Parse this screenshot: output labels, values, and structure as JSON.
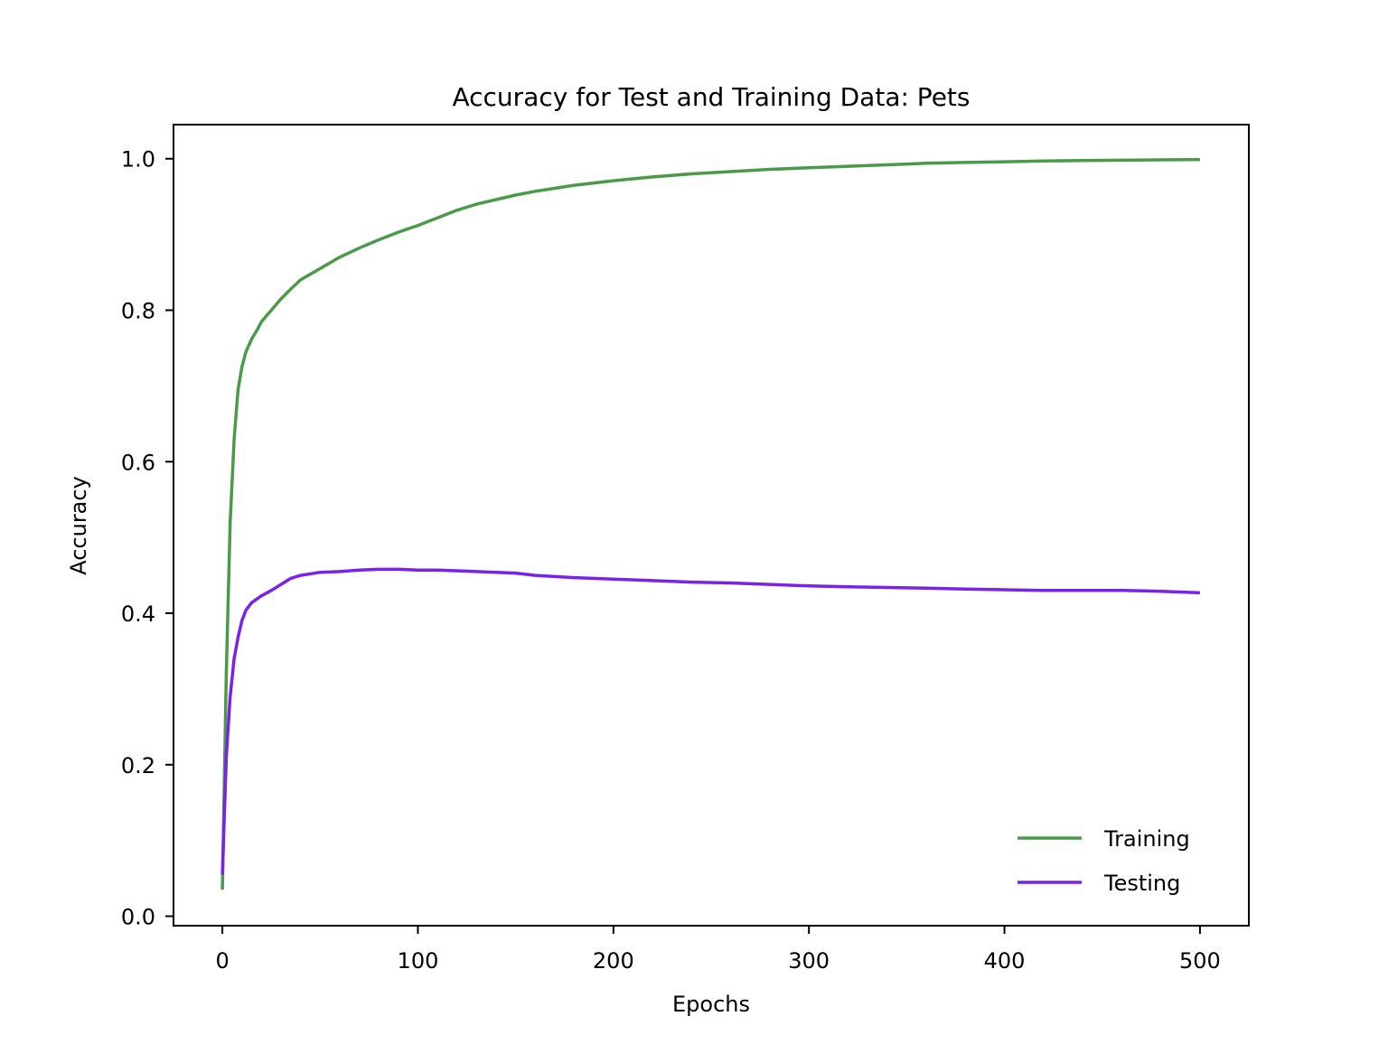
{
  "chart_data": {
    "type": "line",
    "title": "Accuracy for Test and Training Data: Pets",
    "xlabel": "Epochs",
    "ylabel": "Accuracy",
    "xlim": [
      -25,
      525
    ],
    "ylim": [
      -0.0125,
      1.045
    ],
    "x_ticks": [
      0,
      100,
      200,
      300,
      400,
      500
    ],
    "x_tick_labels": [
      "0",
      "100",
      "200",
      "300",
      "400",
      "500"
    ],
    "y_ticks": [
      0.0,
      0.2,
      0.4,
      0.6,
      0.8,
      1.0
    ],
    "y_tick_labels": [
      "0.0",
      "0.2",
      "0.4",
      "0.6",
      "0.8",
      "1.0"
    ],
    "grid": false,
    "legend_position": "lower-right",
    "series": [
      {
        "name": "Training",
        "color": "#4a9a4a",
        "x": [
          0,
          2,
          4,
          6,
          8,
          10,
          12,
          15,
          18,
          20,
          25,
          30,
          35,
          40,
          50,
          60,
          70,
          80,
          90,
          100,
          110,
          120,
          130,
          140,
          150,
          160,
          170,
          180,
          190,
          200,
          220,
          240,
          260,
          280,
          300,
          320,
          340,
          360,
          380,
          400,
          420,
          440,
          460,
          480,
          500
        ],
        "y": [
          0.035,
          0.32,
          0.52,
          0.63,
          0.695,
          0.725,
          0.745,
          0.762,
          0.775,
          0.785,
          0.8,
          0.815,
          0.828,
          0.84,
          0.855,
          0.87,
          0.882,
          0.893,
          0.903,
          0.912,
          0.922,
          0.932,
          0.94,
          0.946,
          0.952,
          0.957,
          0.961,
          0.965,
          0.968,
          0.971,
          0.976,
          0.98,
          0.983,
          0.986,
          0.988,
          0.99,
          0.992,
          0.994,
          0.995,
          0.996,
          0.997,
          0.9975,
          0.998,
          0.9985,
          0.999
        ]
      },
      {
        "name": "Testing",
        "color": "#7a22e8",
        "x": [
          0,
          2,
          4,
          6,
          8,
          10,
          12,
          15,
          20,
          25,
          30,
          35,
          40,
          50,
          60,
          70,
          80,
          90,
          100,
          110,
          120,
          130,
          140,
          150,
          160,
          180,
          200,
          220,
          240,
          260,
          280,
          300,
          320,
          340,
          360,
          380,
          400,
          420,
          440,
          460,
          480,
          500
        ],
        "y": [
          0.055,
          0.21,
          0.29,
          0.34,
          0.368,
          0.39,
          0.404,
          0.414,
          0.423,
          0.43,
          0.438,
          0.446,
          0.45,
          0.454,
          0.455,
          0.457,
          0.458,
          0.458,
          0.457,
          0.457,
          0.456,
          0.455,
          0.454,
          0.453,
          0.45,
          0.447,
          0.445,
          0.443,
          0.441,
          0.44,
          0.438,
          0.436,
          0.435,
          0.434,
          0.433,
          0.432,
          0.431,
          0.43,
          0.43,
          0.43,
          0.429,
          0.427
        ]
      }
    ]
  }
}
